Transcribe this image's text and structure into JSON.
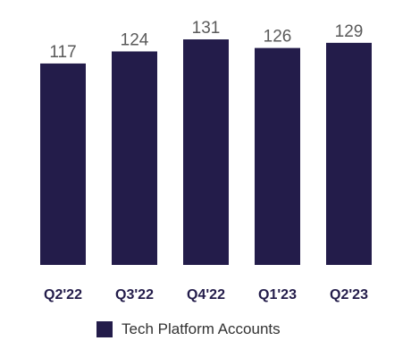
{
  "chart_data": {
    "type": "bar",
    "categories": [
      "Q2'22",
      "Q3'22",
      "Q4'22",
      "Q1'23",
      "Q2'23"
    ],
    "series": [
      {
        "name": "Tech Platform Accounts",
        "values": [
          117,
          124,
          131,
          126,
          129
        ],
        "color": "#231c4a"
      }
    ],
    "data_labels": [
      "117",
      "124",
      "131",
      "126",
      "129"
    ],
    "legend": {
      "position": "bottom",
      "label": "Tech Platform Accounts"
    },
    "grid": false,
    "y_axis_visible": false,
    "ylim": [
      0,
      131
    ]
  }
}
